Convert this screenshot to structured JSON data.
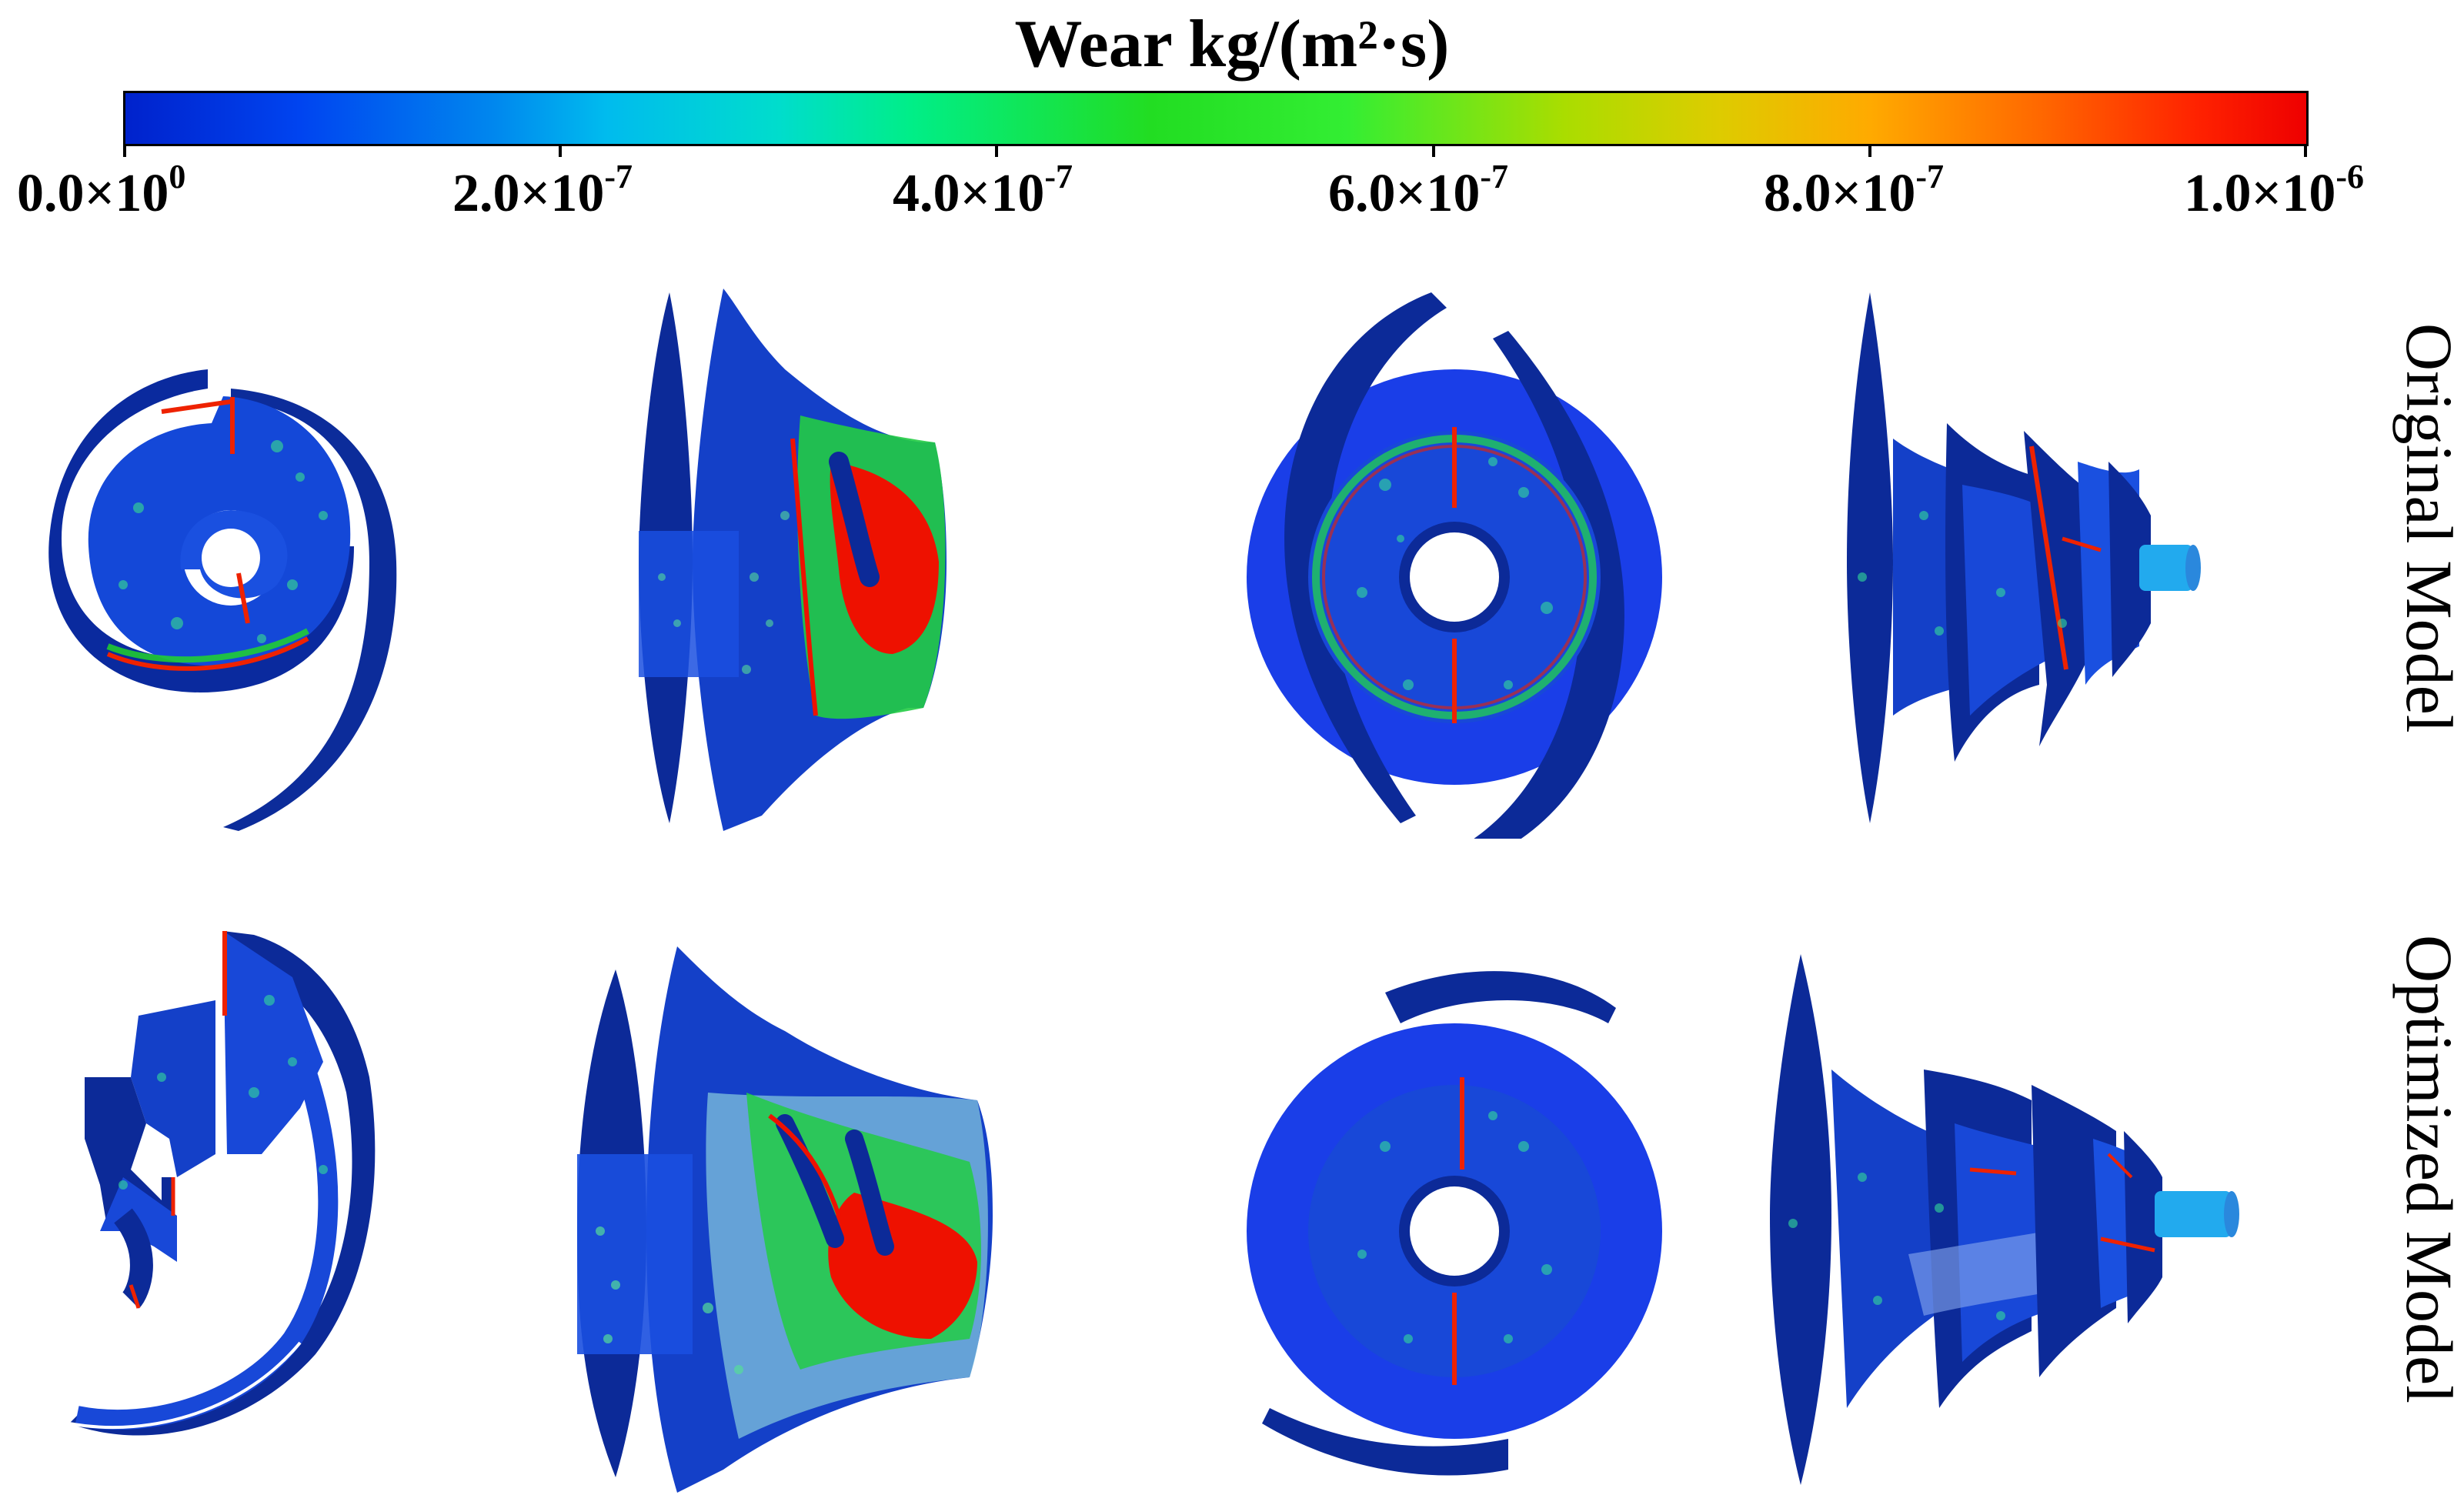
{
  "title": "Wear kg/(m²·s)",
  "colorbar": {
    "ticks": [
      {
        "mantissa": "0.0×10",
        "exp": "0"
      },
      {
        "mantissa": "2.0×10",
        "exp": "-7"
      },
      {
        "mantissa": "4.0×10",
        "exp": "-7"
      },
      {
        "mantissa": "6.0×10",
        "exp": "-7"
      },
      {
        "mantissa": "8.0×10",
        "exp": "-7"
      },
      {
        "mantissa": "1.0×10",
        "exp": "-6"
      }
    ],
    "colors": {
      "low": "#0022cc",
      "mid": "#22dd22",
      "high": "#ee0000"
    }
  },
  "rows": [
    {
      "label": "Original Model"
    },
    {
      "label": "Optimized Model"
    }
  ]
}
